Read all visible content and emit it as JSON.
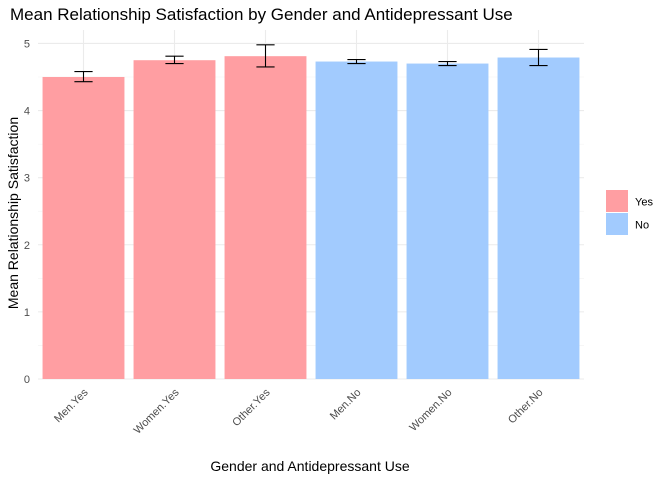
{
  "chart_data": {
    "type": "bar",
    "title": "Mean Relationship Satisfaction by Gender and Antidepressant Use",
    "xlabel": "Gender and Antidepressant Use",
    "ylabel": "Mean Relationship Satisfaction",
    "ylim": [
      0,
      5.2
    ],
    "yticks": [
      "0",
      "1",
      "2",
      "3",
      "4",
      "5"
    ],
    "categories": [
      "Men.Yes",
      "Women.Yes",
      "Other.Yes",
      "Men.No",
      "Women.No",
      "Other.No"
    ],
    "values": [
      4.5,
      4.75,
      4.81,
      4.73,
      4.7,
      4.79
    ],
    "error_low": [
      4.43,
      4.7,
      4.65,
      4.7,
      4.67,
      4.67
    ],
    "error_high": [
      4.58,
      4.81,
      4.98,
      4.76,
      4.73,
      4.91
    ],
    "group": [
      "Yes",
      "Yes",
      "Yes",
      "No",
      "No",
      "No"
    ],
    "legend": {
      "position": "right",
      "items": [
        {
          "label": "Yes",
          "color": "#ff9ea2"
        },
        {
          "label": "No",
          "color": "#a2cbfe"
        }
      ]
    },
    "grid": true
  }
}
